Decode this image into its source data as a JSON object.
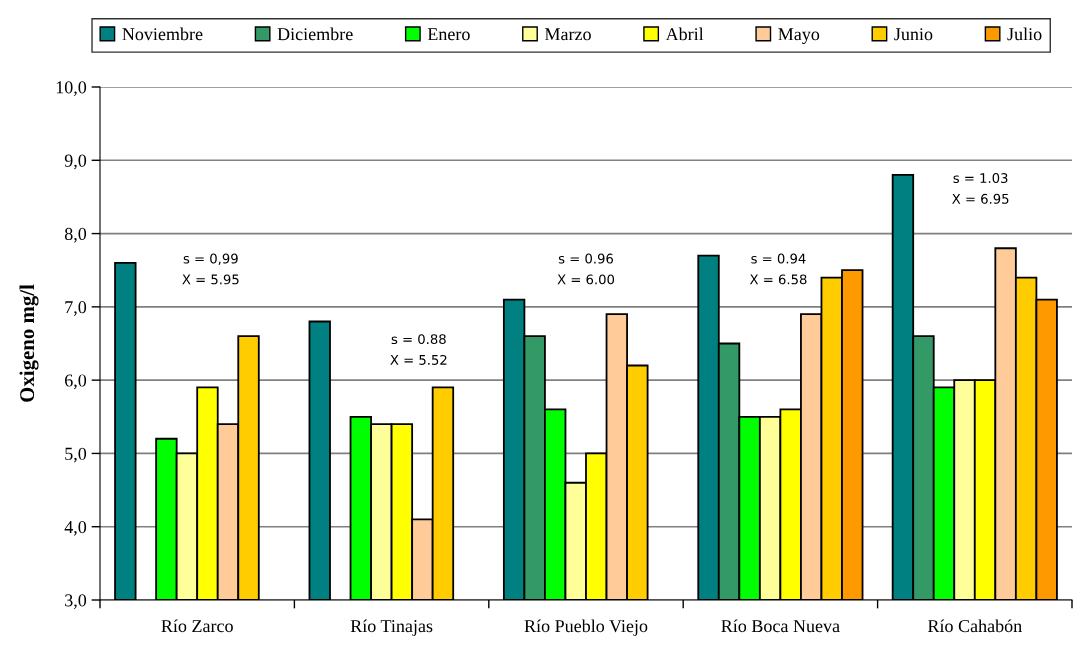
{
  "chart_data": {
    "type": "bar",
    "categories": [
      "Río Zarco",
      "Río Tinajas",
      "Río Pueblo Viejo",
      "Río Boca Nueva",
      "Río Cahabón"
    ],
    "series": [
      {
        "name": "Noviembre",
        "color": "#008080",
        "values": [
          7.6,
          6.8,
          7.1,
          7.7,
          8.8
        ]
      },
      {
        "name": "Diciembre",
        "color": "#339966",
        "values": [
          null,
          null,
          6.6,
          6.5,
          6.6
        ]
      },
      {
        "name": "Enero",
        "color": "#00ff00",
        "values": [
          5.2,
          5.5,
          5.6,
          5.5,
          5.9
        ]
      },
      {
        "name": "Marzo",
        "color": "#ffff99",
        "values": [
          5.0,
          5.4,
          4.6,
          5.5,
          6.0
        ]
      },
      {
        "name": "Abril",
        "color": "#ffff00",
        "values": [
          5.9,
          5.4,
          5.0,
          5.6,
          6.0
        ]
      },
      {
        "name": "Mayo",
        "color": "#ffcc99",
        "values": [
          5.4,
          4.1,
          6.9,
          6.9,
          7.8
        ]
      },
      {
        "name": "Junio",
        "color": "#ffcc00",
        "values": [
          6.6,
          5.9,
          6.2,
          7.4,
          7.4
        ]
      },
      {
        "name": "Julio",
        "color": "#ff9900",
        "values": [
          null,
          null,
          null,
          7.5,
          7.1
        ]
      }
    ],
    "ylabel": "Oxigeno mg/l",
    "ylim": [
      3,
      10
    ],
    "yticks": [
      {
        "value": 3,
        "label": "3,0"
      },
      {
        "value": 4,
        "label": "4,0"
      },
      {
        "value": 5,
        "label": "5,0"
      },
      {
        "value": 6,
        "label": "6,0"
      },
      {
        "value": 7,
        "label": "7,0"
      },
      {
        "value": 8,
        "label": "8,0"
      },
      {
        "value": 9,
        "label": "9,0"
      },
      {
        "value": 10,
        "label": "10,0"
      }
    ],
    "grid": "y",
    "legend": "top",
    "annotations": [
      "s = 0,99\nX = 5.95",
      "s = 0.88\nX = 5.52",
      "s = 0.96\nX = 6.00",
      "s = 0.94\nX = 6.58",
      "s = 1.03\nX = 6.95"
    ]
  }
}
